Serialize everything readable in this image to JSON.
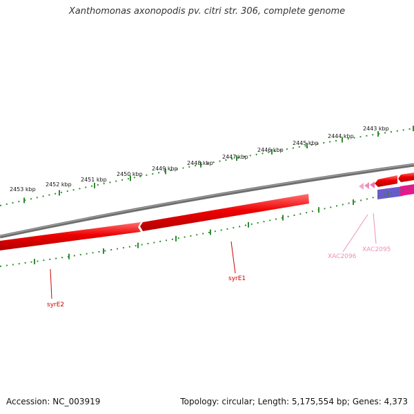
{
  "title": "Xanthomonas axonopodis pv. citri str. 306, complete genome",
  "scale": {
    "tick_labels": [
      "2453 kbp",
      "2452 kbp",
      "2451 kbp",
      "2450 kbp",
      "2449 kbp",
      "2448 kbp",
      "2447 kbp",
      "2446 kbp",
      "2445 kbp",
      "2444 kbp",
      "2443 kbp"
    ]
  },
  "genes": [
    {
      "name": "syrE2",
      "color": "#cc0000"
    },
    {
      "name": "syrE1",
      "color": "#cc0000"
    },
    {
      "name": "XAC2096",
      "color": "#f08cbc"
    },
    {
      "name": "XAC2095",
      "color": "#f08cbc"
    }
  ],
  "colors": {
    "backbone": "#7a7a7a",
    "ticks": "#2e8b2e",
    "forward_gene": "#e00000",
    "reverse_gene": "#ee0000",
    "misc_feature_magenta": "#e6178f",
    "misc_feature_purple": "#6a5acd"
  },
  "footer": {
    "accession": "Accession: NC_003919",
    "summary": "Topology: circular; Length: 5,175,554 bp; Genes: 4,373"
  }
}
